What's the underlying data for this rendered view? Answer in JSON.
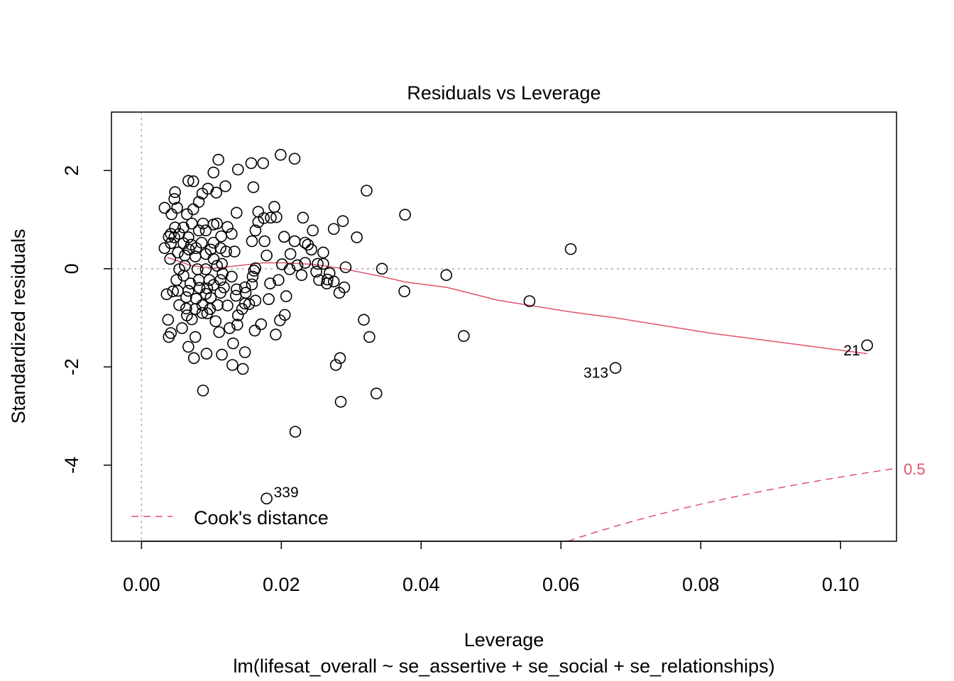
{
  "chart_data": {
    "type": "scatter",
    "title": "Residuals vs Leverage",
    "xlabel": "Leverage",
    "ylabel": "Standardized residuals",
    "subtitle": "lm(lifesat_overall ~ se_assertive + se_social + se_relationships)",
    "xlim": [
      -0.0043,
      0.108
    ],
    "ylim": [
      -5.55,
      3.19
    ],
    "x_ticks": [
      0.0,
      0.02,
      0.04,
      0.06,
      0.08,
      0.1
    ],
    "x_tick_labels": [
      "0.00",
      "0.02",
      "0.04",
      "0.06",
      "0.08",
      "0.10"
    ],
    "y_ticks": [
      -4,
      -2,
      0,
      2
    ],
    "y_tick_labels": [
      "-4",
      "-2",
      "0",
      "2"
    ],
    "grid": false,
    "reference_lines": {
      "x": 0,
      "y": 0
    },
    "legend": {
      "position": "bottom-left",
      "entries": [
        {
          "label": "Cook's distance",
          "style": "dashed",
          "color": "#DF536B"
        }
      ]
    },
    "cooks_contour": {
      "level": 0.5,
      "label": "0.5",
      "color": "#DF536B"
    },
    "smoother_color": "#DF536B",
    "point_labels": [
      {
        "label": "21",
        "x": 0.1038,
        "y": -1.56
      },
      {
        "label": "313",
        "x": 0.0678,
        "y": -2.02
      },
      {
        "label": "339",
        "x": 0.0179,
        "y": -4.68
      }
    ],
    "smoother": [
      [
        0.0037,
        0.23
      ],
      [
        0.0072,
        0.06
      ],
      [
        0.0103,
        0.01
      ],
      [
        0.0143,
        0.07
      ],
      [
        0.0174,
        0.12
      ],
      [
        0.0204,
        0.12
      ],
      [
        0.0245,
        0.09
      ],
      [
        0.0285,
        0.01
      ],
      [
        0.0344,
        -0.16
      ],
      [
        0.0377,
        -0.27
      ],
      [
        0.0437,
        -0.38
      ],
      [
        0.0509,
        -0.64
      ],
      [
        0.0614,
        -0.88
      ],
      [
        0.0678,
        -1.0
      ],
      [
        0.0813,
        -1.31
      ],
      [
        0.1038,
        -1.73
      ]
    ],
    "points": [
      [
        0.1038,
        -1.56
      ],
      [
        0.0678,
        -2.02
      ],
      [
        0.0179,
        -4.68
      ],
      [
        0.0614,
        0.4
      ],
      [
        0.0555,
        -0.66
      ],
      [
        0.0461,
        -1.37
      ],
      [
        0.0436,
        -0.13
      ],
      [
        0.0377,
        1.1
      ],
      [
        0.0376,
        -0.46
      ],
      [
        0.0344,
        0.0
      ],
      [
        0.0336,
        -2.54
      ],
      [
        0.0326,
        -1.39
      ],
      [
        0.0322,
        1.59
      ],
      [
        0.0318,
        -1.04
      ],
      [
        0.0308,
        0.64
      ],
      [
        0.029,
        -0.38
      ],
      [
        0.0288,
        0.97
      ],
      [
        0.0285,
        -2.71
      ],
      [
        0.0284,
        -1.82
      ],
      [
        0.0283,
        -0.49
      ],
      [
        0.0278,
        -1.96
      ],
      [
        0.0275,
        -0.26
      ],
      [
        0.0275,
        0.81
      ],
      [
        0.0269,
        -0.09
      ],
      [
        0.0265,
        -0.3
      ],
      [
        0.026,
        0.1
      ],
      [
        0.0254,
        -0.23
      ],
      [
        0.0252,
        0.1
      ],
      [
        0.0245,
        0.78
      ],
      [
        0.0238,
        0.49
      ],
      [
        0.0234,
        0.53
      ],
      [
        0.0231,
        1.04
      ],
      [
        0.0223,
        0.07
      ],
      [
        0.022,
        -3.32
      ],
      [
        0.0213,
        0.3
      ],
      [
        0.0219,
        2.24
      ],
      [
        0.0199,
        2.32
      ],
      [
        0.019,
        1.26
      ],
      [
        0.0193,
        1.05
      ],
      [
        0.0185,
        1.04
      ],
      [
        0.0182,
        -0.62
      ],
      [
        0.0175,
        1.03
      ],
      [
        0.0167,
        0.95
      ],
      [
        0.0157,
        2.15
      ],
      [
        0.0174,
        2.15
      ],
      [
        0.016,
        1.66
      ],
      [
        0.0167,
        1.16
      ],
      [
        0.0138,
        2.02
      ],
      [
        0.011,
        2.22
      ],
      [
        0.012,
        1.68
      ],
      [
        0.0103,
        1.96
      ],
      [
        0.0107,
        1.55
      ],
      [
        0.0074,
        1.78
      ],
      [
        0.0067,
        1.79
      ],
      [
        0.0048,
        1.56
      ],
      [
        0.0047,
        1.42
      ],
      [
        0.0033,
        1.24
      ],
      [
        0.0192,
        -1.34
      ],
      [
        0.0198,
        -1.05
      ],
      [
        0.0205,
        -0.94
      ],
      [
        0.0207,
        -0.56
      ],
      [
        0.0196,
        -0.23
      ],
      [
        0.0201,
        0.09
      ],
      [
        0.0204,
        0.65
      ],
      [
        0.0179,
        0.27
      ],
      [
        0.0184,
        -0.3
      ],
      [
        0.0171,
        -1.13
      ],
      [
        0.0162,
        -1.26
      ],
      [
        0.0148,
        -1.7
      ],
      [
        0.0145,
        -2.04
      ],
      [
        0.013,
        -1.96
      ],
      [
        0.0126,
        -1.21
      ],
      [
        0.0115,
        -1.75
      ],
      [
        0.0093,
        -1.73
      ],
      [
        0.0088,
        -2.48
      ],
      [
        0.0075,
        -1.82
      ],
      [
        0.0067,
        -1.59
      ],
      [
        0.0042,
        -1.31
      ],
      [
        0.0039,
        -1.39
      ],
      [
        0.0038,
        -1.04
      ],
      [
        0.0058,
        -1.21
      ],
      [
        0.0064,
        -0.81
      ],
      [
        0.0036,
        -0.52
      ],
      [
        0.0045,
        -0.46
      ],
      [
        0.0041,
        0.2
      ],
      [
        0.0042,
        0.52
      ],
      [
        0.0033,
        0.42
      ],
      [
        0.0048,
        0.84
      ],
      [
        0.0043,
        1.11
      ],
      [
        0.0051,
        1.24
      ],
      [
        0.006,
        0.84
      ],
      [
        0.0065,
        1.11
      ],
      [
        0.0086,
        0.53
      ],
      [
        0.0082,
        0.78
      ],
      [
        0.0088,
        0.92
      ],
      [
        0.0092,
        0.78
      ],
      [
        0.0108,
        0.92
      ],
      [
        0.0114,
        0.66
      ],
      [
        0.0123,
        0.85
      ],
      [
        0.0136,
        1.14
      ],
      [
        0.0129,
        0.71
      ],
      [
        0.0133,
        0.35
      ],
      [
        0.0163,
        0.01
      ],
      [
        0.0158,
        -0.32
      ],
      [
        0.0163,
        -0.65
      ],
      [
        0.0148,
        -0.71
      ],
      [
        0.0144,
        -0.82
      ],
      [
        0.0138,
        -0.95
      ],
      [
        0.0123,
        -0.75
      ],
      [
        0.0109,
        -0.74
      ],
      [
        0.0098,
        -0.82
      ],
      [
        0.0087,
        -0.9
      ],
      [
        0.0077,
        -0.82
      ],
      [
        0.0072,
        -1.03
      ],
      [
        0.0064,
        -0.58
      ],
      [
        0.0078,
        -0.61
      ],
      [
        0.0092,
        -0.51
      ],
      [
        0.0103,
        -0.33
      ],
      [
        0.0118,
        -0.38
      ],
      [
        0.0135,
        -0.55
      ],
      [
        0.0149,
        -0.49
      ],
      [
        0.0129,
        -0.16
      ],
      [
        0.0116,
        -0.1
      ],
      [
        0.0108,
        0.06
      ],
      [
        0.0103,
        0.2
      ],
      [
        0.0092,
        0.3
      ],
      [
        0.0077,
        0.25
      ],
      [
        0.0068,
        0.39
      ],
      [
        0.006,
        0.52
      ],
      [
        0.0054,
        0.71
      ],
      [
        0.0062,
        0.06
      ],
      [
        0.006,
        -0.14
      ],
      [
        0.007,
        -0.3
      ],
      [
        0.0082,
        -0.23
      ],
      [
        0.0097,
        -0.23
      ],
      [
        0.0113,
        -0.23
      ],
      [
        0.0092,
        -0.01
      ],
      [
        0.008,
        -0.01
      ],
      [
        0.0113,
        0.42
      ],
      [
        0.0121,
        0.35
      ],
      [
        0.0103,
        0.53
      ],
      [
        0.0067,
        -0.45
      ],
      [
        0.0052,
        -0.45
      ],
      [
        0.005,
        -0.23
      ],
      [
        0.0054,
        -0.01
      ],
      [
        0.0071,
        0.49
      ],
      [
        0.0078,
        0.42
      ],
      [
        0.0099,
        0.39
      ],
      [
        0.0115,
        0.1
      ],
      [
        0.0094,
        -0.4
      ],
      [
        0.0083,
        -0.39
      ],
      [
        0.0136,
        -0.42
      ],
      [
        0.0148,
        -0.38
      ],
      [
        0.0159,
        -0.16
      ],
      [
        0.0087,
        -0.74
      ],
      [
        0.0099,
        -0.59
      ],
      [
        0.0113,
        -0.49
      ],
      [
        0.0052,
        0.33
      ],
      [
        0.0062,
        0.27
      ],
      [
        0.0042,
        0.71
      ],
      [
        0.0039,
        0.65
      ],
      [
        0.0047,
        0.64
      ],
      [
        0.0074,
        1.21
      ],
      [
        0.0082,
        1.36
      ],
      [
        0.0087,
        1.53
      ],
      [
        0.0095,
        1.63
      ],
      [
        0.0103,
        0.9
      ],
      [
        0.0072,
        0.92
      ],
      [
        0.0067,
        0.64
      ],
      [
        0.0219,
        0.56
      ],
      [
        0.0234,
        0.12
      ],
      [
        0.0229,
        -0.13
      ],
      [
        0.0212,
        -0.01
      ],
      [
        0.0243,
        0.39
      ],
      [
        0.026,
        0.33
      ],
      [
        0.025,
        -0.06
      ],
      [
        0.0292,
        0.03
      ],
      [
        0.0266,
        -0.22
      ],
      [
        0.0054,
        -0.74
      ],
      [
        0.0065,
        -0.95
      ],
      [
        0.0077,
        -1.39
      ],
      [
        0.0094,
        -0.91
      ],
      [
        0.0106,
        -1.07
      ],
      [
        0.0111,
        -1.29
      ],
      [
        0.0131,
        -1.52
      ],
      [
        0.0137,
        -1.14
      ],
      [
        0.0154,
        -0.72
      ],
      [
        0.0161,
        -0.04
      ],
      [
        0.0158,
        0.56
      ],
      [
        0.0176,
        0.56
      ],
      [
        0.0163,
        0.78
      ]
    ]
  }
}
